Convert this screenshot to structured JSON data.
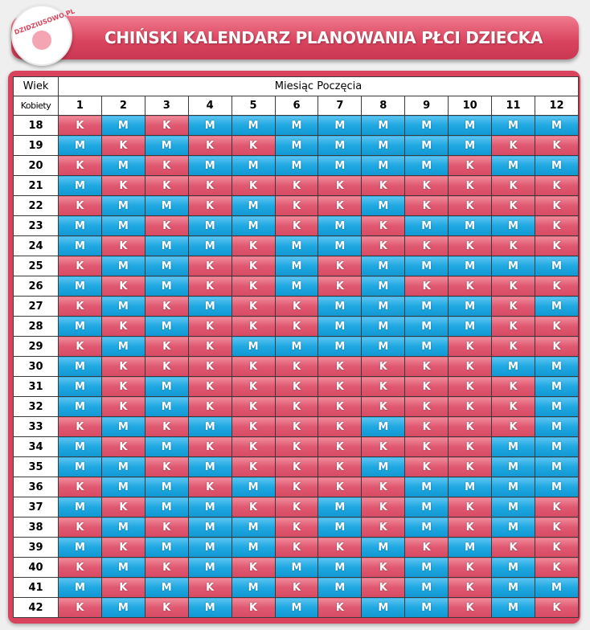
{
  "header": {
    "logo": "DZIDZIUSOWO.PL",
    "title": "CHIŃSKI KALENDARZ PLANOWANIA PŁCI DZIECKA"
  },
  "table": {
    "corner_top": "Wiek",
    "corner_bottom": "Kobiety",
    "group_header": "Miesiąc Poczęcia",
    "months": [
      "1",
      "2",
      "3",
      "4",
      "5",
      "6",
      "7",
      "8",
      "9",
      "10",
      "11",
      "12"
    ],
    "rows": [
      {
        "age": "18",
        "cells": [
          "K",
          "M",
          "K",
          "M",
          "M",
          "M",
          "M",
          "M",
          "M",
          "M",
          "M",
          "M"
        ]
      },
      {
        "age": "19",
        "cells": [
          "M",
          "K",
          "M",
          "K",
          "K",
          "M",
          "M",
          "M",
          "M",
          "M",
          "K",
          "K"
        ]
      },
      {
        "age": "20",
        "cells": [
          "K",
          "M",
          "K",
          "M",
          "M",
          "M",
          "M",
          "M",
          "M",
          "K",
          "M",
          "M"
        ]
      },
      {
        "age": "21",
        "cells": [
          "M",
          "K",
          "K",
          "K",
          "K",
          "K",
          "K",
          "K",
          "K",
          "K",
          "K",
          "K"
        ]
      },
      {
        "age": "22",
        "cells": [
          "K",
          "M",
          "M",
          "K",
          "M",
          "K",
          "K",
          "M",
          "K",
          "K",
          "K",
          "K"
        ]
      },
      {
        "age": "23",
        "cells": [
          "M",
          "M",
          "K",
          "M",
          "M",
          "K",
          "M",
          "K",
          "M",
          "M",
          "M",
          "K"
        ]
      },
      {
        "age": "24",
        "cells": [
          "M",
          "K",
          "M",
          "M",
          "K",
          "M",
          "M",
          "K",
          "K",
          "K",
          "K",
          "K"
        ]
      },
      {
        "age": "25",
        "cells": [
          "K",
          "M",
          "M",
          "K",
          "K",
          "M",
          "K",
          "M",
          "M",
          "M",
          "M",
          "M"
        ]
      },
      {
        "age": "26",
        "cells": [
          "M",
          "K",
          "M",
          "K",
          "K",
          "M",
          "K",
          "M",
          "K",
          "K",
          "K",
          "K"
        ]
      },
      {
        "age": "27",
        "cells": [
          "K",
          "M",
          "K",
          "M",
          "K",
          "K",
          "M",
          "M",
          "M",
          "M",
          "K",
          "M"
        ]
      },
      {
        "age": "28",
        "cells": [
          "M",
          "K",
          "M",
          "K",
          "K",
          "K",
          "M",
          "M",
          "M",
          "M",
          "K",
          "K"
        ]
      },
      {
        "age": "29",
        "cells": [
          "K",
          "M",
          "K",
          "K",
          "M",
          "M",
          "M",
          "M",
          "M",
          "K",
          "K",
          "K"
        ]
      },
      {
        "age": "30",
        "cells": [
          "M",
          "K",
          "K",
          "K",
          "K",
          "K",
          "K",
          "K",
          "K",
          "K",
          "M",
          "M"
        ]
      },
      {
        "age": "31",
        "cells": [
          "M",
          "K",
          "M",
          "K",
          "K",
          "K",
          "K",
          "K",
          "K",
          "K",
          "K",
          "M"
        ]
      },
      {
        "age": "32",
        "cells": [
          "M",
          "K",
          "M",
          "K",
          "K",
          "K",
          "K",
          "K",
          "K",
          "K",
          "K",
          "M"
        ]
      },
      {
        "age": "33",
        "cells": [
          "K",
          "M",
          "K",
          "M",
          "K",
          "K",
          "K",
          "M",
          "K",
          "K",
          "K",
          "M"
        ]
      },
      {
        "age": "34",
        "cells": [
          "M",
          "K",
          "M",
          "K",
          "K",
          "K",
          "K",
          "K",
          "K",
          "K",
          "M",
          "M"
        ]
      },
      {
        "age": "35",
        "cells": [
          "M",
          "M",
          "K",
          "M",
          "K",
          "K",
          "K",
          "M",
          "K",
          "K",
          "M",
          "M"
        ]
      },
      {
        "age": "36",
        "cells": [
          "K",
          "M",
          "M",
          "K",
          "M",
          "K",
          "K",
          "K",
          "M",
          "M",
          "M",
          "M"
        ]
      },
      {
        "age": "37",
        "cells": [
          "M",
          "K",
          "M",
          "M",
          "K",
          "K",
          "M",
          "K",
          "M",
          "K",
          "M",
          "K"
        ]
      },
      {
        "age": "38",
        "cells": [
          "K",
          "M",
          "K",
          "M",
          "M",
          "K",
          "M",
          "K",
          "M",
          "K",
          "M",
          "K"
        ]
      },
      {
        "age": "39",
        "cells": [
          "M",
          "K",
          "M",
          "M",
          "M",
          "K",
          "K",
          "M",
          "K",
          "M",
          "K",
          "K"
        ]
      },
      {
        "age": "40",
        "cells": [
          "K",
          "M",
          "K",
          "M",
          "K",
          "M",
          "M",
          "K",
          "M",
          "K",
          "M",
          "K"
        ]
      },
      {
        "age": "41",
        "cells": [
          "M",
          "K",
          "M",
          "K",
          "M",
          "K",
          "M",
          "K",
          "M",
          "K",
          "M",
          "M"
        ]
      },
      {
        "age": "42",
        "cells": [
          "K",
          "M",
          "K",
          "M",
          "K",
          "M",
          "K",
          "M",
          "M",
          "K",
          "M",
          "K"
        ]
      }
    ]
  }
}
